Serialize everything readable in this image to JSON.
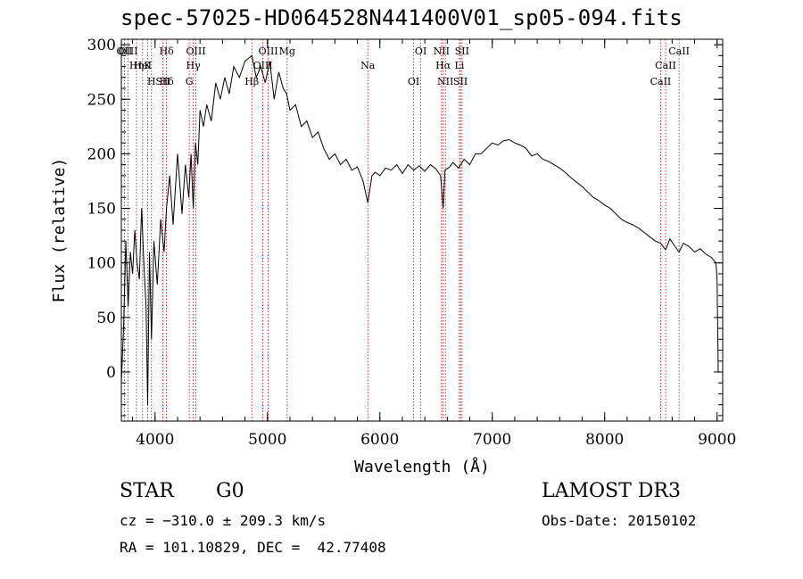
{
  "header": {
    "title": "spec-57025-HD064528N441400V01_sp05-094.fits"
  },
  "info": {
    "class": "STAR",
    "subclass": "G0",
    "survey": "LAMOST DR3",
    "cz": "cz = −310.0 ± 209.3 km/s",
    "obs_date": "Obs-Date: 20150102",
    "coords": "RA = 101.10829, DEC =  42.77408"
  },
  "chart_data": {
    "type": "line",
    "title": "spec-57025-HD064528N441400V01_sp05-094.fits",
    "xlabel": "Wavelength (Å)",
    "ylabel": "Flux (relative)",
    "xlim": [
      3700,
      9050
    ],
    "ylim": [
      -45,
      305
    ],
    "x_ticks": [
      4000,
      5000,
      6000,
      7000,
      8000,
      9000
    ],
    "y_ticks": [
      0,
      50,
      100,
      150,
      200,
      250,
      300
    ],
    "series": [
      {
        "name": "spectrum",
        "x": [
          3700,
          3720,
          3740,
          3760,
          3780,
          3800,
          3820,
          3840,
          3860,
          3880,
          3900,
          3920,
          3934,
          3950,
          3968,
          3990,
          4020,
          4050,
          4080,
          4102,
          4130,
          4160,
          4200,
          4240,
          4270,
          4300,
          4320,
          4340,
          4360,
          4380,
          4400,
          4430,
          4460,
          4500,
          4540,
          4580,
          4620,
          4660,
          4700,
          4750,
          4800,
          4861,
          4900,
          4940,
          4980,
          5020,
          5060,
          5100,
          5140,
          5170,
          5200,
          5250,
          5300,
          5350,
          5400,
          5450,
          5500,
          5550,
          5600,
          5650,
          5700,
          5750,
          5800,
          5850,
          5893,
          5930,
          5960,
          6000,
          6050,
          6100,
          6150,
          6200,
          6250,
          6300,
          6350,
          6400,
          6450,
          6500,
          6540,
          6563,
          6580,
          6620,
          6650,
          6700,
          6750,
          6800,
          6850,
          6900,
          6950,
          7000,
          7050,
          7100,
          7150,
          7200,
          7250,
          7300,
          7350,
          7400,
          7450,
          7500,
          7550,
          7600,
          7650,
          7700,
          7750,
          7800,
          7850,
          7900,
          7950,
          8000,
          8050,
          8100,
          8150,
          8200,
          8250,
          8300,
          8350,
          8400,
          8450,
          8498,
          8542,
          8580,
          8620,
          8662,
          8700,
          8750,
          8800,
          8850,
          8900,
          8950,
          8990,
          9000,
          9010
        ],
        "values": [
          -10,
          40,
          120,
          60,
          110,
          90,
          130,
          100,
          85,
          150,
          100,
          60,
          -30,
          110,
          30,
          120,
          80,
          140,
          110,
          150,
          180,
          135,
          200,
          145,
          190,
          160,
          200,
          150,
          210,
          190,
          240,
          225,
          245,
          230,
          265,
          250,
          270,
          255,
          280,
          270,
          285,
          290,
          270,
          280,
          265,
          285,
          250,
          275,
          260,
          255,
          240,
          245,
          225,
          230,
          215,
          220,
          205,
          195,
          200,
          190,
          195,
          185,
          188,
          175,
          155,
          180,
          183,
          180,
          187,
          185,
          190,
          182,
          190,
          185,
          189,
          184,
          190,
          186,
          180,
          150,
          185,
          188,
          192,
          187,
          195,
          190,
          200,
          200,
          205,
          210,
          208,
          212,
          213,
          210,
          208,
          205,
          198,
          200,
          195,
          193,
          190,
          187,
          183,
          178,
          174,
          170,
          165,
          160,
          157,
          153,
          150,
          145,
          140,
          137,
          135,
          132,
          128,
          124,
          120,
          118,
          112,
          122,
          116,
          110,
          118,
          115,
          110,
          113,
          108,
          105,
          100,
          85,
          0
        ]
      }
    ],
    "spectral_lines": [
      {
        "label": "Hδ",
        "x": 4102
      },
      {
        "label": "K",
        "x": 3934
      },
      {
        "label": "Hδ",
        "x": 4102
      },
      {
        "label": "OII",
        "x": 3727
      },
      {
        "label": "HeI",
        "x": 3889
      },
      {
        "label": "SII",
        "x": 4069
      },
      {
        "label": "OIII",
        "x": 3760
      },
      {
        "label": "Hη",
        "x": 3835
      },
      {
        "label": "H",
        "x": 3968
      },
      {
        "label": "OIII",
        "x": 4363
      },
      {
        "label": "Hγ",
        "x": 4340
      },
      {
        "label": "G",
        "x": 4304
      },
      {
        "label": "OIII",
        "x": 5007
      },
      {
        "label": "OIII",
        "x": 4959
      },
      {
        "label": "Hβ",
        "x": 4861
      },
      {
        "label": "Mg",
        "x": 5175
      },
      {
        "label": "Na",
        "x": 5893
      },
      {
        "label": "OI",
        "x": 6300
      },
      {
        "label": "OI",
        "x": 6364
      },
      {
        "label": "Hα",
        "x": 6563
      },
      {
        "label": "SII",
        "x": 6717
      },
      {
        "label": "NII",
        "x": 6548
      },
      {
        "label": "Li",
        "x": 6708
      },
      {
        "label": "NII",
        "x": 6583
      },
      {
        "label": "SII",
        "x": 6731
      },
      {
        "label": "CaII",
        "x": 8542
      },
      {
        "label": "CaII",
        "x": 8498
      },
      {
        "label": "CaII",
        "x": 8662
      }
    ]
  }
}
